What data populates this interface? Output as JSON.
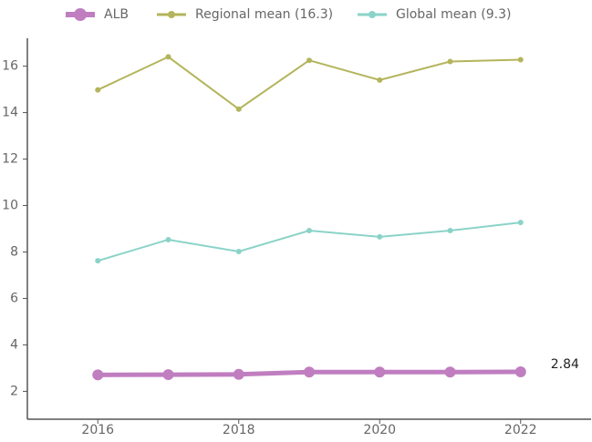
{
  "chart_data": {
    "type": "line",
    "x": [
      2016,
      2017,
      2018,
      2019,
      2020,
      2021,
      2022
    ],
    "series": [
      {
        "name": "ALB",
        "color": "#c07ec0",
        "values": [
          2.71,
          2.72,
          2.73,
          2.83,
          2.83,
          2.83,
          2.84
        ]
      },
      {
        "name": "Regional mean (16.3)",
        "color": "#b4b45c",
        "values": [
          14.98,
          16.4,
          14.15,
          16.25,
          15.4,
          16.2,
          16.28
        ]
      },
      {
        "name": "Global mean (9.3)",
        "color": "#8ad3c8",
        "values": [
          7.62,
          8.53,
          8.02,
          8.92,
          8.65,
          8.92,
          9.27
        ]
      }
    ],
    "xlim": [
      2015,
      2023
    ],
    "xticks": [
      2016,
      2018,
      2020,
      2022
    ],
    "ylim": [
      0.8,
      17.2
    ],
    "yticks": [
      2,
      4,
      6,
      8,
      10,
      12,
      14,
      16
    ],
    "grid": false,
    "legend": "top"
  }
}
